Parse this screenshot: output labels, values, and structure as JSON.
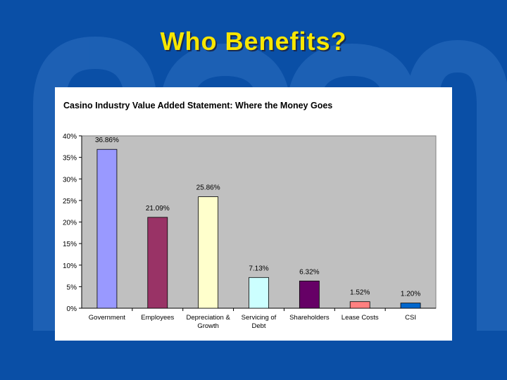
{
  "slide": {
    "title": "Who Benefits?",
    "background_color": "#0a4fa6",
    "title_color": "#f7e600"
  },
  "chart_data": {
    "type": "bar",
    "title": "Casino Industry Value Added Statement: Where the Money Goes",
    "xlabel": "",
    "ylabel": "",
    "categories": [
      "Government",
      "Employees",
      "Depreciation & Growth",
      "Servicing of Debt",
      "Shareholders",
      "Lease Costs",
      "CSI"
    ],
    "category_lines": [
      [
        "Government"
      ],
      [
        "Employees"
      ],
      [
        "Depreciation &",
        "Growth"
      ],
      [
        "Servicing of",
        "Debt"
      ],
      [
        "Shareholders"
      ],
      [
        "Lease Costs"
      ],
      [
        "CSI"
      ]
    ],
    "values": [
      36.86,
      21.09,
      25.86,
      7.13,
      6.32,
      1.52,
      1.2
    ],
    "data_labels": [
      "36.86%",
      "21.09%",
      "25.86%",
      "7.13%",
      "6.32%",
      "1.52%",
      "1.20%"
    ],
    "bar_colors": [
      "#9999ff",
      "#993366",
      "#ffffcc",
      "#ccffff",
      "#660066",
      "#ff8080",
      "#0066cc"
    ],
    "ylim": [
      0,
      40
    ],
    "yticks": [
      0,
      5,
      10,
      15,
      20,
      25,
      30,
      35,
      40
    ],
    "ytick_labels": [
      "0%",
      "5%",
      "10%",
      "15%",
      "20%",
      "25%",
      "30%",
      "35%",
      "40%"
    ],
    "plot_background": "#c0c0c0",
    "grid": false,
    "legend": "none"
  }
}
